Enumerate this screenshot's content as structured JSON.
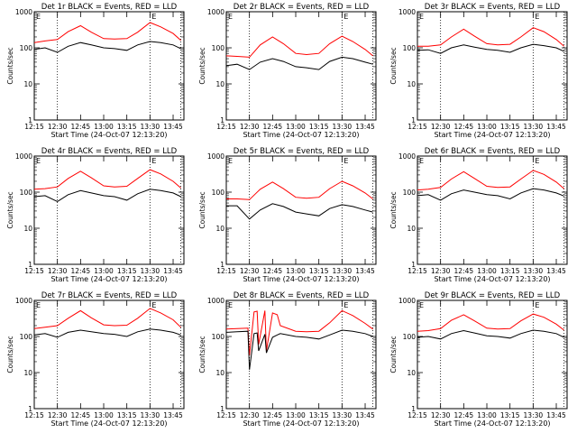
{
  "chart_data": [
    {
      "type": "line",
      "title": "Det 1r BLACK = Events, RED = LLD",
      "xlabel": "Start Time (24-Oct-07 12:13:20)",
      "ylabel": "Counts/sec",
      "xticks": [
        "12:15",
        "12:30",
        "12:45",
        "13:00",
        "13:15",
        "13:30",
        "13:45"
      ],
      "yticks": [
        "1",
        "10",
        "100",
        "1000"
      ],
      "ylim": [
        1,
        1000
      ],
      "yscale": "log",
      "xlim": [
        "12:15",
        "13:52"
      ],
      "markers": [
        {
          "label": "E",
          "x": "13:30"
        }
      ],
      "vlines": [
        "12:30",
        "13:30",
        "13:50"
      ],
      "series": [
        {
          "color": "#ff0000",
          "x": [
            "12:15",
            "12:22",
            "12:30",
            "12:37",
            "12:45",
            "12:52",
            "13:00",
            "13:07",
            "13:15",
            "13:22",
            "13:30",
            "13:37",
            "13:45",
            "13:50"
          ],
          "values": [
            140,
            155,
            170,
            280,
            410,
            270,
            180,
            175,
            180,
            270,
            500,
            380,
            250,
            160
          ]
        },
        {
          "color": "#000000",
          "x": [
            "12:15",
            "12:22",
            "12:30",
            "12:37",
            "12:45",
            "12:52",
            "13:00",
            "13:07",
            "13:15",
            "13:22",
            "13:30",
            "13:37",
            "13:45",
            "13:50"
          ],
          "values": [
            90,
            100,
            75,
            110,
            140,
            120,
            100,
            95,
            85,
            120,
            150,
            140,
            120,
            95
          ]
        }
      ]
    },
    {
      "type": "line",
      "title": "Det 2r BLACK = Events, RED = LLD",
      "xlabel": "Start Time (24-Oct-07 12:13:20)",
      "ylabel": "Counts/sec",
      "xticks": [
        "12:15",
        "12:30",
        "12:45",
        "13:00",
        "13:15",
        "13:30",
        "13:45"
      ],
      "yticks": [
        "1",
        "10",
        "100",
        "1000"
      ],
      "ylim": [
        1,
        1000
      ],
      "yscale": "log",
      "xlim": [
        "12:15",
        "13:52"
      ],
      "markers": [
        {
          "label": "E",
          "x": "13:30"
        }
      ],
      "vlines": [
        "12:30",
        "13:30",
        "13:50"
      ],
      "series": [
        {
          "color": "#ff0000",
          "x": [
            "12:15",
            "12:22",
            "12:30",
            "12:37",
            "12:45",
            "12:52",
            "13:00",
            "13:07",
            "13:15",
            "13:22",
            "13:30",
            "13:37",
            "13:45",
            "13:50"
          ],
          "values": [
            60,
            58,
            55,
            120,
            200,
            130,
            70,
            65,
            70,
            130,
            210,
            150,
            90,
            60
          ]
        },
        {
          "color": "#000000",
          "x": [
            "12:15",
            "12:22",
            "12:30",
            "12:37",
            "12:45",
            "12:52",
            "13:00",
            "13:07",
            "13:15",
            "13:22",
            "13:30",
            "13:37",
            "13:45",
            "13:50"
          ],
          "values": [
            32,
            35,
            25,
            40,
            50,
            42,
            30,
            28,
            25,
            42,
            55,
            50,
            40,
            35
          ]
        }
      ]
    },
    {
      "type": "line",
      "title": "Det 3r BLACK = Events, RED = LLD",
      "xlabel": "Start Time (24-Oct-07 12:13:20)",
      "ylabel": "Counts/sec",
      "xticks": [
        "12:15",
        "12:30",
        "12:45",
        "13:00",
        "13:15",
        "13:30",
        "13:45"
      ],
      "yticks": [
        "1",
        "10",
        "100",
        "1000"
      ],
      "ylim": [
        1,
        1000
      ],
      "yscale": "log",
      "xlim": [
        "12:15",
        "13:52"
      ],
      "markers": [
        {
          "label": "E",
          "x": "13:30"
        }
      ],
      "vlines": [
        "12:30",
        "13:30",
        "13:50"
      ],
      "series": [
        {
          "color": "#ff0000",
          "x": [
            "12:15",
            "12:22",
            "12:30",
            "12:37",
            "12:45",
            "12:52",
            "13:00",
            "13:07",
            "13:15",
            "13:22",
            "13:30",
            "13:37",
            "13:45",
            "13:50"
          ],
          "values": [
            110,
            110,
            120,
            200,
            330,
            210,
            130,
            120,
            125,
            200,
            360,
            280,
            170,
            110
          ]
        },
        {
          "color": "#000000",
          "x": [
            "12:15",
            "12:22",
            "12:30",
            "12:37",
            "12:45",
            "12:52",
            "13:00",
            "13:07",
            "13:15",
            "13:22",
            "13:30",
            "13:37",
            "13:45",
            "13:50"
          ],
          "values": [
            85,
            88,
            70,
            100,
            120,
            105,
            90,
            85,
            75,
            100,
            125,
            115,
            100,
            80
          ]
        }
      ]
    },
    {
      "type": "line",
      "title": "Det 4r BLACK = Events, RED = LLD",
      "xlabel": "Start Time (24-Oct-07 12:13:20)",
      "ylabel": "Counts/sec",
      "xticks": [
        "12:15",
        "12:30",
        "12:45",
        "13:00",
        "13:15",
        "13:30",
        "13:45"
      ],
      "yticks": [
        "1",
        "10",
        "100",
        "1000"
      ],
      "ylim": [
        1,
        1000
      ],
      "yscale": "log",
      "xlim": [
        "12:15",
        "13:52"
      ],
      "markers": [
        {
          "label": "E",
          "x": "13:30"
        }
      ],
      "vlines": [
        "12:30",
        "13:30",
        "13:50"
      ],
      "series": [
        {
          "color": "#ff0000",
          "x": [
            "12:15",
            "12:22",
            "12:30",
            "12:37",
            "12:45",
            "12:52",
            "13:00",
            "13:07",
            "13:15",
            "13:22",
            "13:30",
            "13:37",
            "13:45",
            "13:50"
          ],
          "values": [
            120,
            125,
            140,
            240,
            380,
            250,
            150,
            140,
            145,
            240,
            420,
            320,
            200,
            130
          ]
        },
        {
          "color": "#000000",
          "x": [
            "12:15",
            "12:22",
            "12:30",
            "12:37",
            "12:45",
            "12:52",
            "13:00",
            "13:07",
            "13:15",
            "13:22",
            "13:30",
            "13:37",
            "13:45",
            "13:50"
          ],
          "values": [
            75,
            80,
            55,
            85,
            110,
            95,
            80,
            75,
            60,
            90,
            120,
            110,
            95,
            75
          ]
        }
      ]
    },
    {
      "type": "line",
      "title": "Det 5r BLACK = Events, RED = LLD",
      "xlabel": "Start Time (24-Oct-07 12:13:20)",
      "ylabel": "Counts/sec",
      "xticks": [
        "12:15",
        "12:30",
        "12:45",
        "13:00",
        "13:15",
        "13:30",
        "13:45"
      ],
      "yticks": [
        "1",
        "10",
        "100",
        "1000"
      ],
      "ylim": [
        1,
        1000
      ],
      "yscale": "log",
      "xlim": [
        "12:15",
        "13:52"
      ],
      "markers": [
        {
          "label": "E",
          "x": "13:30"
        }
      ],
      "vlines": [
        "12:30",
        "13:30",
        "13:50"
      ],
      "series": [
        {
          "color": "#ff0000",
          "x": [
            "12:15",
            "12:22",
            "12:30",
            "12:37",
            "12:45",
            "12:52",
            "13:00",
            "13:07",
            "13:15",
            "13:22",
            "13:30",
            "13:37",
            "13:45",
            "13:50"
          ],
          "values": [
            65,
            65,
            62,
            120,
            190,
            125,
            72,
            68,
            72,
            125,
            200,
            150,
            95,
            65
          ]
        },
        {
          "color": "#000000",
          "x": [
            "12:15",
            "12:22",
            "12:30",
            "12:37",
            "12:45",
            "12:52",
            "13:00",
            "13:07",
            "13:15",
            "13:22",
            "13:30",
            "13:37",
            "13:45",
            "13:50"
          ],
          "values": [
            42,
            42,
            18,
            32,
            48,
            40,
            28,
            25,
            22,
            35,
            45,
            40,
            32,
            28
          ]
        }
      ]
    },
    {
      "type": "line",
      "title": "Det 6r BLACK = Events, RED = LLD",
      "xlabel": "Start Time (24-Oct-07 12:13:20)",
      "ylabel": "Counts/sec",
      "xticks": [
        "12:15",
        "12:30",
        "12:45",
        "13:00",
        "13:15",
        "13:30",
        "13:45"
      ],
      "yticks": [
        "1",
        "10",
        "100",
        "1000"
      ],
      "ylim": [
        1,
        1000
      ],
      "yscale": "log",
      "xlim": [
        "12:15",
        "13:52"
      ],
      "markers": [
        {
          "label": "E",
          "x": "13:30"
        }
      ],
      "vlines": [
        "12:30",
        "13:30",
        "13:50"
      ],
      "series": [
        {
          "color": "#ff0000",
          "x": [
            "12:15",
            "12:22",
            "12:30",
            "12:37",
            "12:45",
            "12:52",
            "13:00",
            "13:07",
            "13:15",
            "13:22",
            "13:30",
            "13:37",
            "13:45",
            "13:50"
          ],
          "values": [
            115,
            120,
            135,
            230,
            370,
            240,
            145,
            135,
            140,
            230,
            400,
            310,
            190,
            125
          ]
        },
        {
          "color": "#000000",
          "x": [
            "12:15",
            "12:22",
            "12:30",
            "12:37",
            "12:45",
            "12:52",
            "13:00",
            "13:07",
            "13:15",
            "13:22",
            "13:30",
            "13:37",
            "13:45",
            "13:50"
          ],
          "values": [
            80,
            85,
            60,
            90,
            115,
            100,
            85,
            80,
            65,
            95,
            125,
            115,
            95,
            78
          ]
        }
      ]
    },
    {
      "type": "line",
      "title": "Det 7r BLACK = Events, RED = LLD",
      "xlabel": "Start Time (24-Oct-07 12:13:20)",
      "ylabel": "Counts/sec",
      "xticks": [
        "12:15",
        "12:30",
        "12:45",
        "13:00",
        "13:15",
        "13:30",
        "13:45"
      ],
      "yticks": [
        "1",
        "10",
        "100",
        "1000"
      ],
      "ylim": [
        1,
        1000
      ],
      "yscale": "log",
      "xlim": [
        "12:15",
        "13:52"
      ],
      "markers": [
        {
          "label": "E",
          "x": "13:30"
        }
      ],
      "vlines": [
        "12:30",
        "13:30",
        "13:50"
      ],
      "series": [
        {
          "color": "#ff0000",
          "x": [
            "12:15",
            "12:22",
            "12:30",
            "12:37",
            "12:45",
            "12:52",
            "13:00",
            "13:07",
            "13:15",
            "13:22",
            "13:30",
            "13:37",
            "13:45",
            "13:50"
          ],
          "values": [
            165,
            180,
            200,
            320,
            520,
            330,
            210,
            200,
            205,
            320,
            600,
            450,
            290,
            180
          ]
        },
        {
          "color": "#000000",
          "x": [
            "12:15",
            "12:22",
            "12:30",
            "12:37",
            "12:45",
            "12:52",
            "13:00",
            "13:07",
            "13:15",
            "13:22",
            "13:30",
            "13:37",
            "13:45",
            "13:50"
          ],
          "values": [
            110,
            120,
            95,
            130,
            150,
            135,
            120,
            115,
            100,
            135,
            160,
            150,
            130,
            110
          ]
        }
      ]
    },
    {
      "type": "line",
      "title": "Det 8r BLACK = Events, RED = LLD",
      "xlabel": "Start Time (24-Oct-07 12:13:20)",
      "ylabel": "Counts/sec",
      "xticks": [
        "12:15",
        "12:30",
        "12:45",
        "13:00",
        "13:15",
        "13:30",
        "13:45"
      ],
      "yticks": [
        "1",
        "10",
        "100",
        "1000"
      ],
      "ylim": [
        1,
        1000
      ],
      "yscale": "log",
      "xlim": [
        "12:15",
        "13:52"
      ],
      "markers": [
        {
          "label": "E",
          "x": "13:30"
        }
      ],
      "vlines": [
        "12:30",
        "13:30",
        "13:50"
      ],
      "series": [
        {
          "color": "#ff0000",
          "x": [
            "12:15",
            "12:22",
            "12:29",
            "12:30",
            "12:33",
            "12:35",
            "12:36",
            "12:40",
            "12:41",
            "12:45",
            "12:48",
            "12:50",
            "13:00",
            "13:07",
            "13:15",
            "13:22",
            "13:30",
            "13:37",
            "13:45",
            "13:50"
          ],
          "values": [
            160,
            165,
            170,
            30,
            480,
            500,
            60,
            520,
            40,
            450,
            400,
            200,
            140,
            135,
            140,
            240,
            520,
            380,
            230,
            160
          ]
        },
        {
          "color": "#000000",
          "x": [
            "12:15",
            "12:22",
            "12:29",
            "12:30",
            "12:33",
            "12:35",
            "12:36",
            "12:40",
            "12:41",
            "12:45",
            "12:48",
            "12:50",
            "13:00",
            "13:07",
            "13:15",
            "13:22",
            "13:30",
            "13:37",
            "13:45",
            "13:50"
          ],
          "values": [
            130,
            135,
            140,
            12,
            120,
            125,
            40,
            115,
            35,
            95,
            110,
            120,
            100,
            95,
            85,
            110,
            150,
            140,
            120,
            100
          ]
        }
      ]
    },
    {
      "type": "line",
      "title": "Det 9r BLACK = Events, RED = LLD",
      "xlabel": "Start Time (24-Oct-07 12:13:20)",
      "ylabel": "Counts/sec",
      "xticks": [
        "12:15",
        "12:30",
        "12:45",
        "13:00",
        "13:15",
        "13:30",
        "13:45"
      ],
      "yticks": [
        "1",
        "10",
        "100",
        "1000"
      ],
      "ylim": [
        1,
        1000
      ],
      "yscale": "log",
      "xlim": [
        "12:15",
        "13:52"
      ],
      "markers": [
        {
          "label": "E",
          "x": "13:30"
        }
      ],
      "vlines": [
        "12:30",
        "13:30",
        "13:50"
      ],
      "series": [
        {
          "color": "#ff0000",
          "x": [
            "12:15",
            "12:22",
            "12:30",
            "12:37",
            "12:45",
            "12:52",
            "13:00",
            "13:07",
            "13:15",
            "13:22",
            "13:30",
            "13:37",
            "13:45",
            "13:50"
          ],
          "values": [
            140,
            145,
            165,
            280,
            400,
            270,
            170,
            160,
            165,
            270,
            420,
            340,
            220,
            150
          ]
        },
        {
          "color": "#000000",
          "x": [
            "12:15",
            "12:22",
            "12:30",
            "12:37",
            "12:45",
            "12:52",
            "13:00",
            "13:07",
            "13:15",
            "13:22",
            "13:30",
            "13:37",
            "13:45",
            "13:50"
          ],
          "values": [
            95,
            100,
            85,
            120,
            145,
            125,
            105,
            100,
            90,
            120,
            150,
            140,
            120,
            95
          ]
        }
      ]
    }
  ]
}
